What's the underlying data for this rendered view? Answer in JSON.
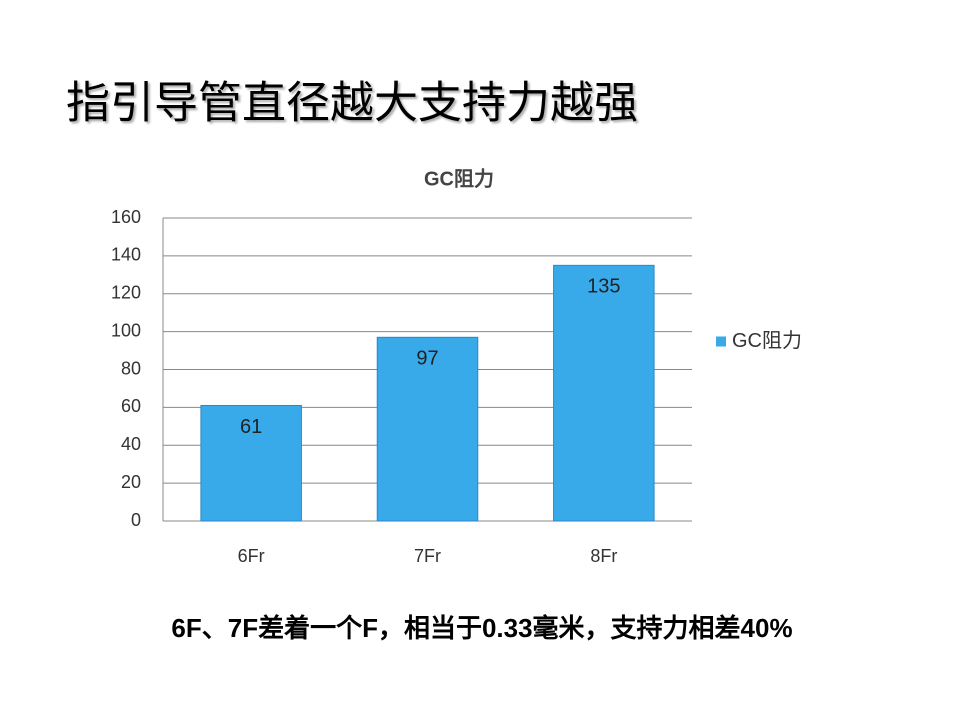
{
  "slide_title": "指引导管直径越大支持力越强",
  "chart_data": {
    "type": "bar",
    "title": "GC阻力",
    "categories": [
      "6Fr",
      "7Fr",
      "8Fr"
    ],
    "series": [
      {
        "name": "GC阻力",
        "color": "#38aaea",
        "values": [
          61,
          97,
          135
        ]
      }
    ],
    "ylim": [
      0,
      160
    ],
    "yticks": [
      0,
      20,
      40,
      60,
      80,
      100,
      120,
      140,
      160
    ],
    "grid": true,
    "legend": "right",
    "data_labels": true
  },
  "caption": "6F、7F差着一个F，相当于0.33毫米，支持力相差40%"
}
